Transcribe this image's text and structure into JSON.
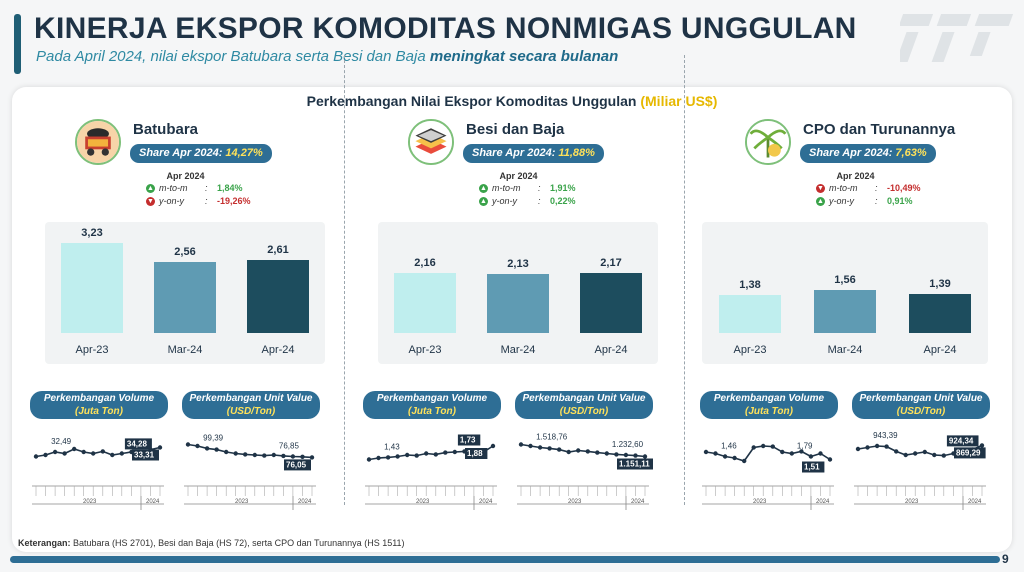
{
  "header": {
    "title": "KINERJA EKSPOR KOMODITAS NONMIGAS UNGGULAN",
    "subtitle_prefix": "Pada April 2024, nilai ekspor Batubara serta Besi dan Baja",
    "subtitle_emph": "meningkat secara bulanan"
  },
  "panel": {
    "title": "Perkembangan Nilai Ekspor Komoditas Unggulan",
    "unit": "(Miliar US$)"
  },
  "colors": {
    "bar_apr23": "#bfeeee",
    "bar_mar24": "#5f9bb3",
    "bar_apr24": "#1d4d5e",
    "up": "#3aa34a",
    "down": "#c42e2e",
    "pill": "#2e6e95"
  },
  "commodities": [
    {
      "name": "Batubara",
      "icon": "coal-cart-icon",
      "share_label": "Share Apr 2024:",
      "share_value": "14,27%",
      "period": "Apr 2024",
      "mtm_label": "m-to-m",
      "mtm_value": "1,84%",
      "mtm_dir": "up",
      "yoy_label": "y-on-y",
      "yoy_value": "-19,26%",
      "yoy_dir": "down",
      "bars": [
        {
          "cat": "Apr-23",
          "value": 3.23,
          "label": "3,23"
        },
        {
          "cat": "Mar-24",
          "value": 2.56,
          "label": "2,56"
        },
        {
          "cat": "Apr-24",
          "value": 2.61,
          "label": "2,61"
        }
      ],
      "volume_title": "Perkembangan Volume",
      "volume_unit": "(Juta Ton)",
      "volume_labels": [
        "32,49",
        "34,28",
        "33,31"
      ],
      "unit_title": "Perkembangan Unit Value",
      "unit_unit": "(USD/Ton)",
      "unit_labels": [
        "99,39",
        "76,85",
        "76,05"
      ]
    },
    {
      "name": "Besi dan Baja",
      "icon": "steel-stack-icon",
      "share_label": "Share Apr 2024:",
      "share_value": "11,88%",
      "period": "Apr 2024",
      "mtm_label": "m-to-m",
      "mtm_value": "1,91%",
      "mtm_dir": "up",
      "yoy_label": "y-on-y",
      "yoy_value": "0,22%",
      "yoy_dir": "up",
      "bars": [
        {
          "cat": "Apr-23",
          "value": 2.16,
          "label": "2,16"
        },
        {
          "cat": "Mar-24",
          "value": 2.13,
          "label": "2,13"
        },
        {
          "cat": "Apr-24",
          "value": 2.17,
          "label": "2,17"
        }
      ],
      "volume_title": "Perkembangan Volume",
      "volume_unit": "(Juta Ton)",
      "volume_labels": [
        "1,43",
        "1,73",
        "1,88"
      ],
      "unit_title": "Perkembangan Unit Value",
      "unit_unit": "(USD/Ton)",
      "unit_labels": [
        "1.518,76",
        "1.232,60",
        "1.151,11"
      ]
    },
    {
      "name": "CPO dan Turunannya",
      "icon": "palm-oil-icon",
      "share_label": "Share Apr 2024:",
      "share_value": "7,63%",
      "period": "Apr 2024",
      "mtm_label": "m-to-m",
      "mtm_value": "-10,49%",
      "mtm_dir": "down",
      "yoy_label": "y-on-y",
      "yoy_value": "0,91%",
      "yoy_dir": "up",
      "bars": [
        {
          "cat": "Apr-23",
          "value": 1.38,
          "label": "1,38"
        },
        {
          "cat": "Mar-24",
          "value": 1.56,
          "label": "1,56"
        },
        {
          "cat": "Apr-24",
          "value": 1.39,
          "label": "1,39"
        }
      ],
      "volume_title": "Perkembangan Volume",
      "volume_unit": "(Juta Ton)",
      "volume_labels": [
        "1,46",
        "1,79",
        "1,51"
      ],
      "unit_title": "Perkembangan Unit Value",
      "unit_unit": "(USD/Ton)",
      "unit_labels": [
        "943,39",
        "924,34",
        "869,29"
      ]
    }
  ],
  "axis_years": [
    "2023",
    "2024"
  ],
  "footnote": {
    "label": "Keterangan:",
    "text": "Batubara (HS 2701), Besi dan Baja (HS 72), serta CPO dan Turunannya (HS 1511)"
  },
  "page_number": "9"
}
